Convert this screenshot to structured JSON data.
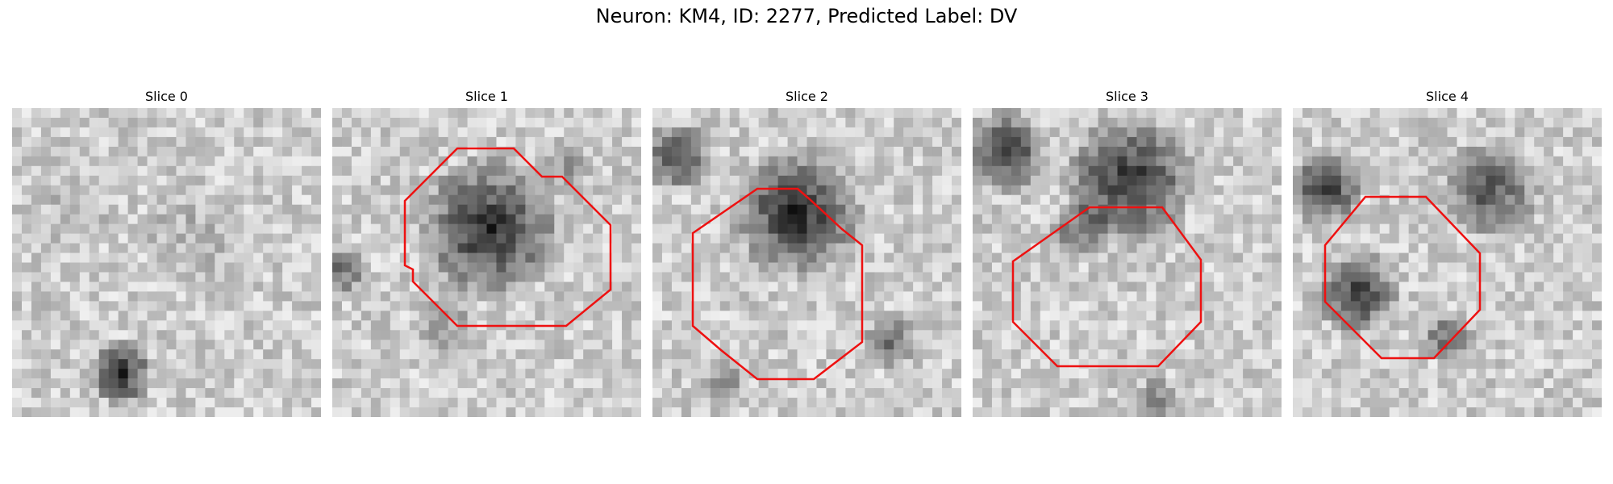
{
  "figure": {
    "title": "Neuron: KM4, ID: 2277, Predicted Label: DV"
  },
  "panels": [
    {
      "title": "Slice 0"
    },
    {
      "title": "Slice 1"
    },
    {
      "title": "Slice 2"
    },
    {
      "title": "Slice 3"
    },
    {
      "title": "Slice 4"
    }
  ],
  "colors": {
    "outline": "#ee1111",
    "background": "#ffffff"
  }
}
